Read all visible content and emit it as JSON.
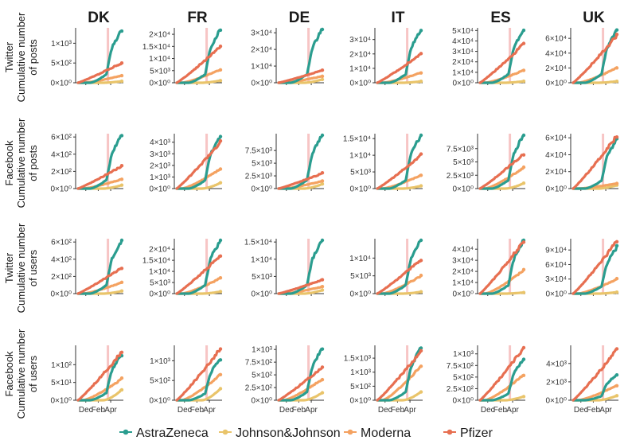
{
  "chart_data": {
    "type": "line",
    "columns": [
      "DK",
      "FR",
      "DE",
      "IT",
      "ES",
      "UK"
    ],
    "rows": [
      {
        "platform": "Twitter",
        "metric": "Cumulative number of posts",
        "label_lines": [
          "Twitter",
          "Cumulative number",
          "of posts"
        ]
      },
      {
        "platform": "Facebook",
        "metric": "Cumulative number of posts",
        "label_lines": [
          "Facebook",
          "Cumulative number",
          "of posts"
        ]
      },
      {
        "platform": "Twitter",
        "metric": "Cumulative number of users",
        "label_lines": [
          "Twitter",
          "Cumulative number",
          "of users"
        ]
      },
      {
        "platform": "Facebook",
        "metric": "Cumulative number of users",
        "label_lines": [
          "Facebook",
          "Cumulative number",
          "of users"
        ]
      }
    ],
    "x_ticks": [
      "Dec",
      "Feb",
      "Apr"
    ],
    "x_range": [
      "Nov",
      "May"
    ],
    "vline": "Mar (pink highlight)",
    "legend": [
      "AstraZeneca",
      "Johnson&Johnson",
      "Moderna",
      "Pfizer"
    ],
    "series_colors": {
      "AstraZeneca": "#2a9d8f",
      "Johnson&Johnson": "#e9c46a",
      "Moderna": "#f4a261",
      "Pfizer": "#e76f51"
    },
    "panels": [
      {
        "row": 0,
        "col": "DK",
        "ymax": 1350,
        "ticks": [
          {
            "v": 0,
            "label": "0×10⁰"
          },
          {
            "v": 500,
            "label": "5×10²"
          },
          {
            "v": 1000,
            "label": "1×10³"
          }
        ],
        "finals": {
          "AstraZeneca": 1350,
          "Johnson&Johnson": 40,
          "Moderna": 180,
          "Pfizer": 500
        }
      },
      {
        "row": 0,
        "col": "FR",
        "ymax": 22000,
        "ticks": [
          {
            "v": 0,
            "label": "0×10⁰"
          },
          {
            "v": 5000,
            "label": "5×10³"
          },
          {
            "v": 10000,
            "label": "1×10⁴"
          },
          {
            "v": 15000,
            "label": "1.5×10⁴"
          },
          {
            "v": 20000,
            "label": "2×10⁴"
          }
        ],
        "finals": {
          "AstraZeneca": 22000,
          "Johnson&Johnson": 900,
          "Moderna": 5500,
          "Pfizer": 15000
        }
      },
      {
        "row": 0,
        "col": "DE",
        "ymax": 32000,
        "ticks": [
          {
            "v": 0,
            "label": "0×10⁰"
          },
          {
            "v": 10000,
            "label": "1×10⁴"
          },
          {
            "v": 20000,
            "label": "2×10⁴"
          },
          {
            "v": 30000,
            "label": "3×10⁴"
          }
        ],
        "finals": {
          "AstraZeneca": 32000,
          "Johnson&Johnson": 2000,
          "Moderna": 4000,
          "Pfizer": 7500
        }
      },
      {
        "row": 0,
        "col": "IT",
        "ymax": 37000,
        "ticks": [
          {
            "v": 0,
            "label": "0×10⁰"
          },
          {
            "v": 10000,
            "label": "1×10⁴"
          },
          {
            "v": 20000,
            "label": "2×10⁴"
          },
          {
            "v": 30000,
            "label": "3×10⁴"
          }
        ],
        "finals": {
          "AstraZeneca": 37000,
          "Johnson&Johnson": 1000,
          "Moderna": 7000,
          "Pfizer": 20000
        }
      },
      {
        "row": 0,
        "col": "ES",
        "ymax": 51000,
        "ticks": [
          {
            "v": 0,
            "label": "0×10⁰"
          },
          {
            "v": 10000,
            "label": "1×10⁴"
          },
          {
            "v": 20000,
            "label": "2×10⁴"
          },
          {
            "v": 30000,
            "label": "3×10⁴"
          },
          {
            "v": 40000,
            "label": "4×10⁴"
          },
          {
            "v": 50000,
            "label": "5×10⁴"
          }
        ],
        "finals": {
          "AstraZeneca": 51000,
          "Johnson&Johnson": 1500,
          "Moderna": 12000,
          "Pfizer": 37000
        }
      },
      {
        "row": 0,
        "col": "UK",
        "ymax": 72000,
        "ticks": [
          {
            "v": 0,
            "label": "0×10⁰"
          },
          {
            "v": 20000,
            "label": "2×10⁴"
          },
          {
            "v": 40000,
            "label": "4×10⁴"
          },
          {
            "v": 60000,
            "label": "6×10⁴"
          }
        ],
        "finals": {
          "AstraZeneca": 72000,
          "Johnson&Johnson": 2000,
          "Moderna": 20000,
          "Pfizer": 64000
        }
      },
      {
        "row": 1,
        "col": "DK",
        "ymax": 620,
        "ticks": [
          {
            "v": 0,
            "label": "0×10⁰"
          },
          {
            "v": 200,
            "label": "2×10²"
          },
          {
            "v": 400,
            "label": "4×10²"
          },
          {
            "v": 600,
            "label": "6×10²"
          }
        ],
        "finals": {
          "AstraZeneca": 620,
          "Johnson&Johnson": 40,
          "Moderna": 110,
          "Pfizer": 260
        }
      },
      {
        "row": 1,
        "col": "FR",
        "ymax": 4600,
        "ticks": [
          {
            "v": 0,
            "label": "0×10⁰"
          },
          {
            "v": 1000,
            "label": "1×10³"
          },
          {
            "v": 2000,
            "label": "2×10³"
          },
          {
            "v": 3000,
            "label": "3×10³"
          },
          {
            "v": 4000,
            "label": "4×10³"
          }
        ],
        "finals": {
          "AstraZeneca": 4500,
          "Johnson&Johnson": 500,
          "Moderna": 1700,
          "Pfizer": 4000
        }
      },
      {
        "row": 1,
        "col": "DE",
        "ymax": 10500,
        "ticks": [
          {
            "v": 0,
            "label": "0×10⁰"
          },
          {
            "v": 2500,
            "label": "2.5×10³"
          },
          {
            "v": 5000,
            "label": "5×10³"
          },
          {
            "v": 7500,
            "label": "7.5×10³"
          }
        ],
        "finals": {
          "AstraZeneca": 10500,
          "Johnson&Johnson": 900,
          "Moderna": 1500,
          "Pfizer": 3000
        }
      },
      {
        "row": 1,
        "col": "IT",
        "ymax": 16000,
        "ticks": [
          {
            "v": 0,
            "label": "0×10⁰"
          },
          {
            "v": 5000,
            "label": "5×10³"
          },
          {
            "v": 10000,
            "label": "1×10⁴"
          },
          {
            "v": 15000,
            "label": "1.5×10⁴"
          }
        ],
        "finals": {
          "AstraZeneca": 16000,
          "Johnson&Johnson": 800,
          "Moderna": 4000,
          "Pfizer": 10000
        }
      },
      {
        "row": 1,
        "col": "ES",
        "ymax": 10000,
        "ticks": [
          {
            "v": 0,
            "label": "0×10⁰"
          },
          {
            "v": 2500,
            "label": "2.5×10³"
          },
          {
            "v": 5000,
            "label": "5×10³"
          },
          {
            "v": 7500,
            "label": "7.5×10³"
          }
        ],
        "finals": {
          "AstraZeneca": 10000,
          "Johnson&Johnson": 1000,
          "Moderna": 4000,
          "Pfizer": 6500
        }
      },
      {
        "row": 1,
        "col": "UK",
        "ymax": 63000,
        "ticks": [
          {
            "v": 0,
            "label": "0×10⁰"
          },
          {
            "v": 20000,
            "label": "2×10⁴"
          },
          {
            "v": 40000,
            "label": "4×10⁴"
          },
          {
            "v": 60000,
            "label": "6×10⁴"
          }
        ],
        "finals": {
          "AstraZeneca": 58000,
          "Johnson&Johnson": 4000,
          "Moderna": 6000,
          "Pfizer": 62000
        }
      },
      {
        "row": 2,
        "col": "DK",
        "ymax": 620,
        "ticks": [
          {
            "v": 0,
            "label": "0×10⁰"
          },
          {
            "v": 200,
            "label": "2×10²"
          },
          {
            "v": 400,
            "label": "4×10²"
          },
          {
            "v": 600,
            "label": "6×10²"
          }
        ],
        "finals": {
          "AstraZeneca": 620,
          "Johnson&Johnson": 30,
          "Moderna": 130,
          "Pfizer": 300
        }
      },
      {
        "row": 2,
        "col": "FR",
        "ymax": 24000,
        "ticks": [
          {
            "v": 0,
            "label": "0×10⁰"
          },
          {
            "v": 5000,
            "label": "5×10³"
          },
          {
            "v": 10000,
            "label": "1×10⁴"
          },
          {
            "v": 15000,
            "label": "1.5×10⁴"
          },
          {
            "v": 20000,
            "label": "2×10⁴"
          }
        ],
        "finals": {
          "AstraZeneca": 24000,
          "Johnson&Johnson": 900,
          "Moderna": 7000,
          "Pfizer": 17000
        }
      },
      {
        "row": 2,
        "col": "DE",
        "ymax": 15500,
        "ticks": [
          {
            "v": 0,
            "label": "0×10⁰"
          },
          {
            "v": 5000,
            "label": "5×10³"
          },
          {
            "v": 10000,
            "label": "1×10⁴"
          },
          {
            "v": 15000,
            "label": "1.5×10⁴"
          }
        ],
        "finals": {
          "AstraZeneca": 15500,
          "Johnson&Johnson": 1000,
          "Moderna": 2000,
          "Pfizer": 4000
        }
      },
      {
        "row": 2,
        "col": "IT",
        "ymax": 15000,
        "ticks": [
          {
            "v": 0,
            "label": "0×10⁰"
          },
          {
            "v": 5000,
            "label": "5×10³"
          },
          {
            "v": 10000,
            "label": "1×10⁴"
          }
        ],
        "finals": {
          "AstraZeneca": 15000,
          "Johnson&Johnson": 500,
          "Moderna": 5000,
          "Pfizer": 9500
        }
      },
      {
        "row": 2,
        "col": "ES",
        "ymax": 48000,
        "ticks": [
          {
            "v": 0,
            "label": "0×10⁰"
          },
          {
            "v": 10000,
            "label": "1×10⁴"
          },
          {
            "v": 20000,
            "label": "2×10⁴"
          },
          {
            "v": 30000,
            "label": "3×10⁴"
          },
          {
            "v": 40000,
            "label": "4×10⁴"
          }
        ],
        "finals": {
          "AstraZeneca": 48000,
          "Johnson&Johnson": 1000,
          "Moderna": 21000,
          "Pfizer": 47000
        }
      },
      {
        "row": 2,
        "col": "UK",
        "ymax": 110000,
        "ticks": [
          {
            "v": 0,
            "label": "0×10⁰"
          },
          {
            "v": 30000,
            "label": "3×10⁴"
          },
          {
            "v": 60000,
            "label": "6×10⁴"
          },
          {
            "v": 90000,
            "label": "9×10⁴"
          }
        ],
        "finals": {
          "AstraZeneca": 95000,
          "Johnson&Johnson": 3000,
          "Moderna": 30000,
          "Pfizer": 108000
        }
      },
      {
        "row": 3,
        "col": "DK",
        "ymax": 150,
        "ticks": [
          {
            "v": 0,
            "label": "0×10⁰"
          },
          {
            "v": 50,
            "label": "5×10¹"
          },
          {
            "v": 100,
            "label": "1×10²"
          }
        ],
        "finals": {
          "AstraZeneca": 130,
          "Johnson&Johnson": 30,
          "Moderna": 60,
          "Pfizer": 135
        }
      },
      {
        "row": 3,
        "col": "FR",
        "ymax": 1350,
        "ticks": [
          {
            "v": 0,
            "label": "0×10⁰"
          },
          {
            "v": 500,
            "label": "5×10²"
          },
          {
            "v": 1000,
            "label": "1×10³"
          }
        ],
        "finals": {
          "AstraZeneca": 1050,
          "Johnson&Johnson": 300,
          "Moderna": 650,
          "Pfizer": 1300
        }
      },
      {
        "row": 3,
        "col": "DE",
        "ymax": 1050,
        "ticks": [
          {
            "v": 0,
            "label": "0×10⁰"
          },
          {
            "v": 250,
            "label": "2.5×10²"
          },
          {
            "v": 500,
            "label": "5×10²"
          },
          {
            "v": 750,
            "label": "7.5×10²"
          },
          {
            "v": 1000,
            "label": "1×10³"
          }
        ],
        "finals": {
          "AstraZeneca": 1020,
          "Johnson&Johnson": 150,
          "Moderna": 420,
          "Pfizer": 650
        }
      },
      {
        "row": 3,
        "col": "IT",
        "ymax": 1900,
        "ticks": [
          {
            "v": 0,
            "label": "0×10⁰"
          },
          {
            "v": 500,
            "label": "5×10²"
          },
          {
            "v": 1000,
            "label": "1×10³"
          },
          {
            "v": 1500,
            "label": "1.5×10³"
          }
        ],
        "finals": {
          "AstraZeneca": 1850,
          "Johnson&Johnson": 300,
          "Moderna": 1250,
          "Pfizer": 1750
        }
      },
      {
        "row": 3,
        "col": "ES",
        "ymax": 1150,
        "ticks": [
          {
            "v": 0,
            "label": "0×10⁰"
          },
          {
            "v": 250,
            "label": "2.5×10²"
          },
          {
            "v": 500,
            "label": "5×10²"
          },
          {
            "v": 750,
            "label": "7.5×10²"
          },
          {
            "v": 1000,
            "label": "1×10³"
          }
        ],
        "finals": {
          "AstraZeneca": 900,
          "Johnson&Johnson": 80,
          "Moderna": 550,
          "Pfizer": 1120
        }
      },
      {
        "row": 3,
        "col": "UK",
        "ymax": 5800,
        "ticks": [
          {
            "v": 0,
            "label": "0×10⁰"
          },
          {
            "v": 2000,
            "label": "2×10³"
          },
          {
            "v": 4000,
            "label": "4×10³"
          }
        ],
        "finals": {
          "AstraZeneca": 2800,
          "Johnson&Johnson": 500,
          "Moderna": 1600,
          "Pfizer": 5500
        }
      }
    ]
  }
}
